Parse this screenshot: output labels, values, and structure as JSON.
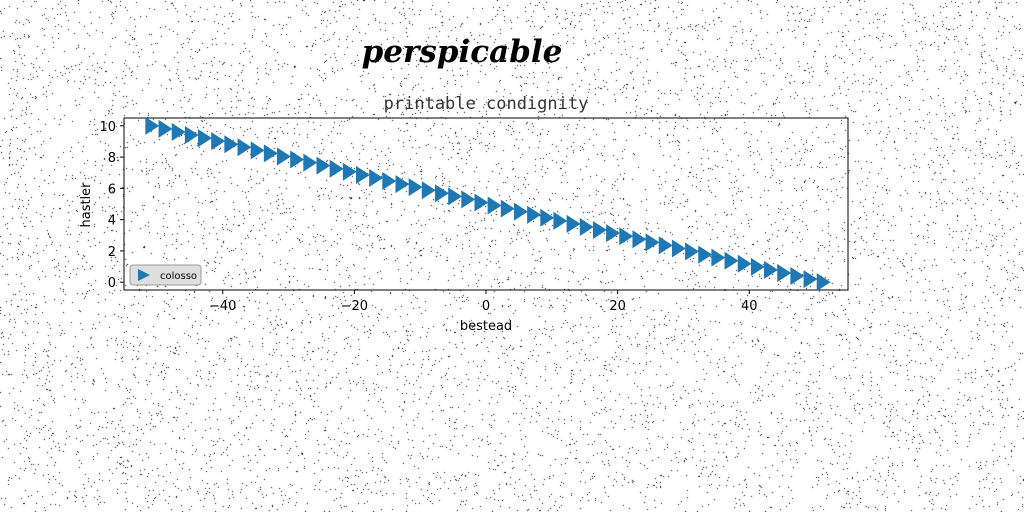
{
  "figure": {
    "suptitle": "perspicable"
  },
  "chart_data": {
    "type": "scatter",
    "title": "printable condignity",
    "xlabel": "bestead",
    "ylabel": "hastler",
    "xlim": [
      -55,
      55
    ],
    "ylim": [
      -0.5,
      10.5
    ],
    "x_ticks": [
      -40,
      -20,
      0,
      20,
      40
    ],
    "x_tick_labels": [
      "−40",
      "−20",
      "0",
      "20",
      "40"
    ],
    "y_ticks": [
      0,
      2,
      4,
      6,
      8,
      10
    ],
    "y_tick_labels": [
      "0",
      "2",
      "4",
      "6",
      "8",
      "10"
    ],
    "grid": false,
    "legend_position": "lower-left",
    "series": [
      {
        "name": "colosso",
        "marker": "triangle-right",
        "linestyle": "none",
        "color": "#1f77b4",
        "x_start": -51,
        "x_end": 51,
        "y_start": 10,
        "y_end": 0,
        "n_points": 52
      }
    ]
  }
}
